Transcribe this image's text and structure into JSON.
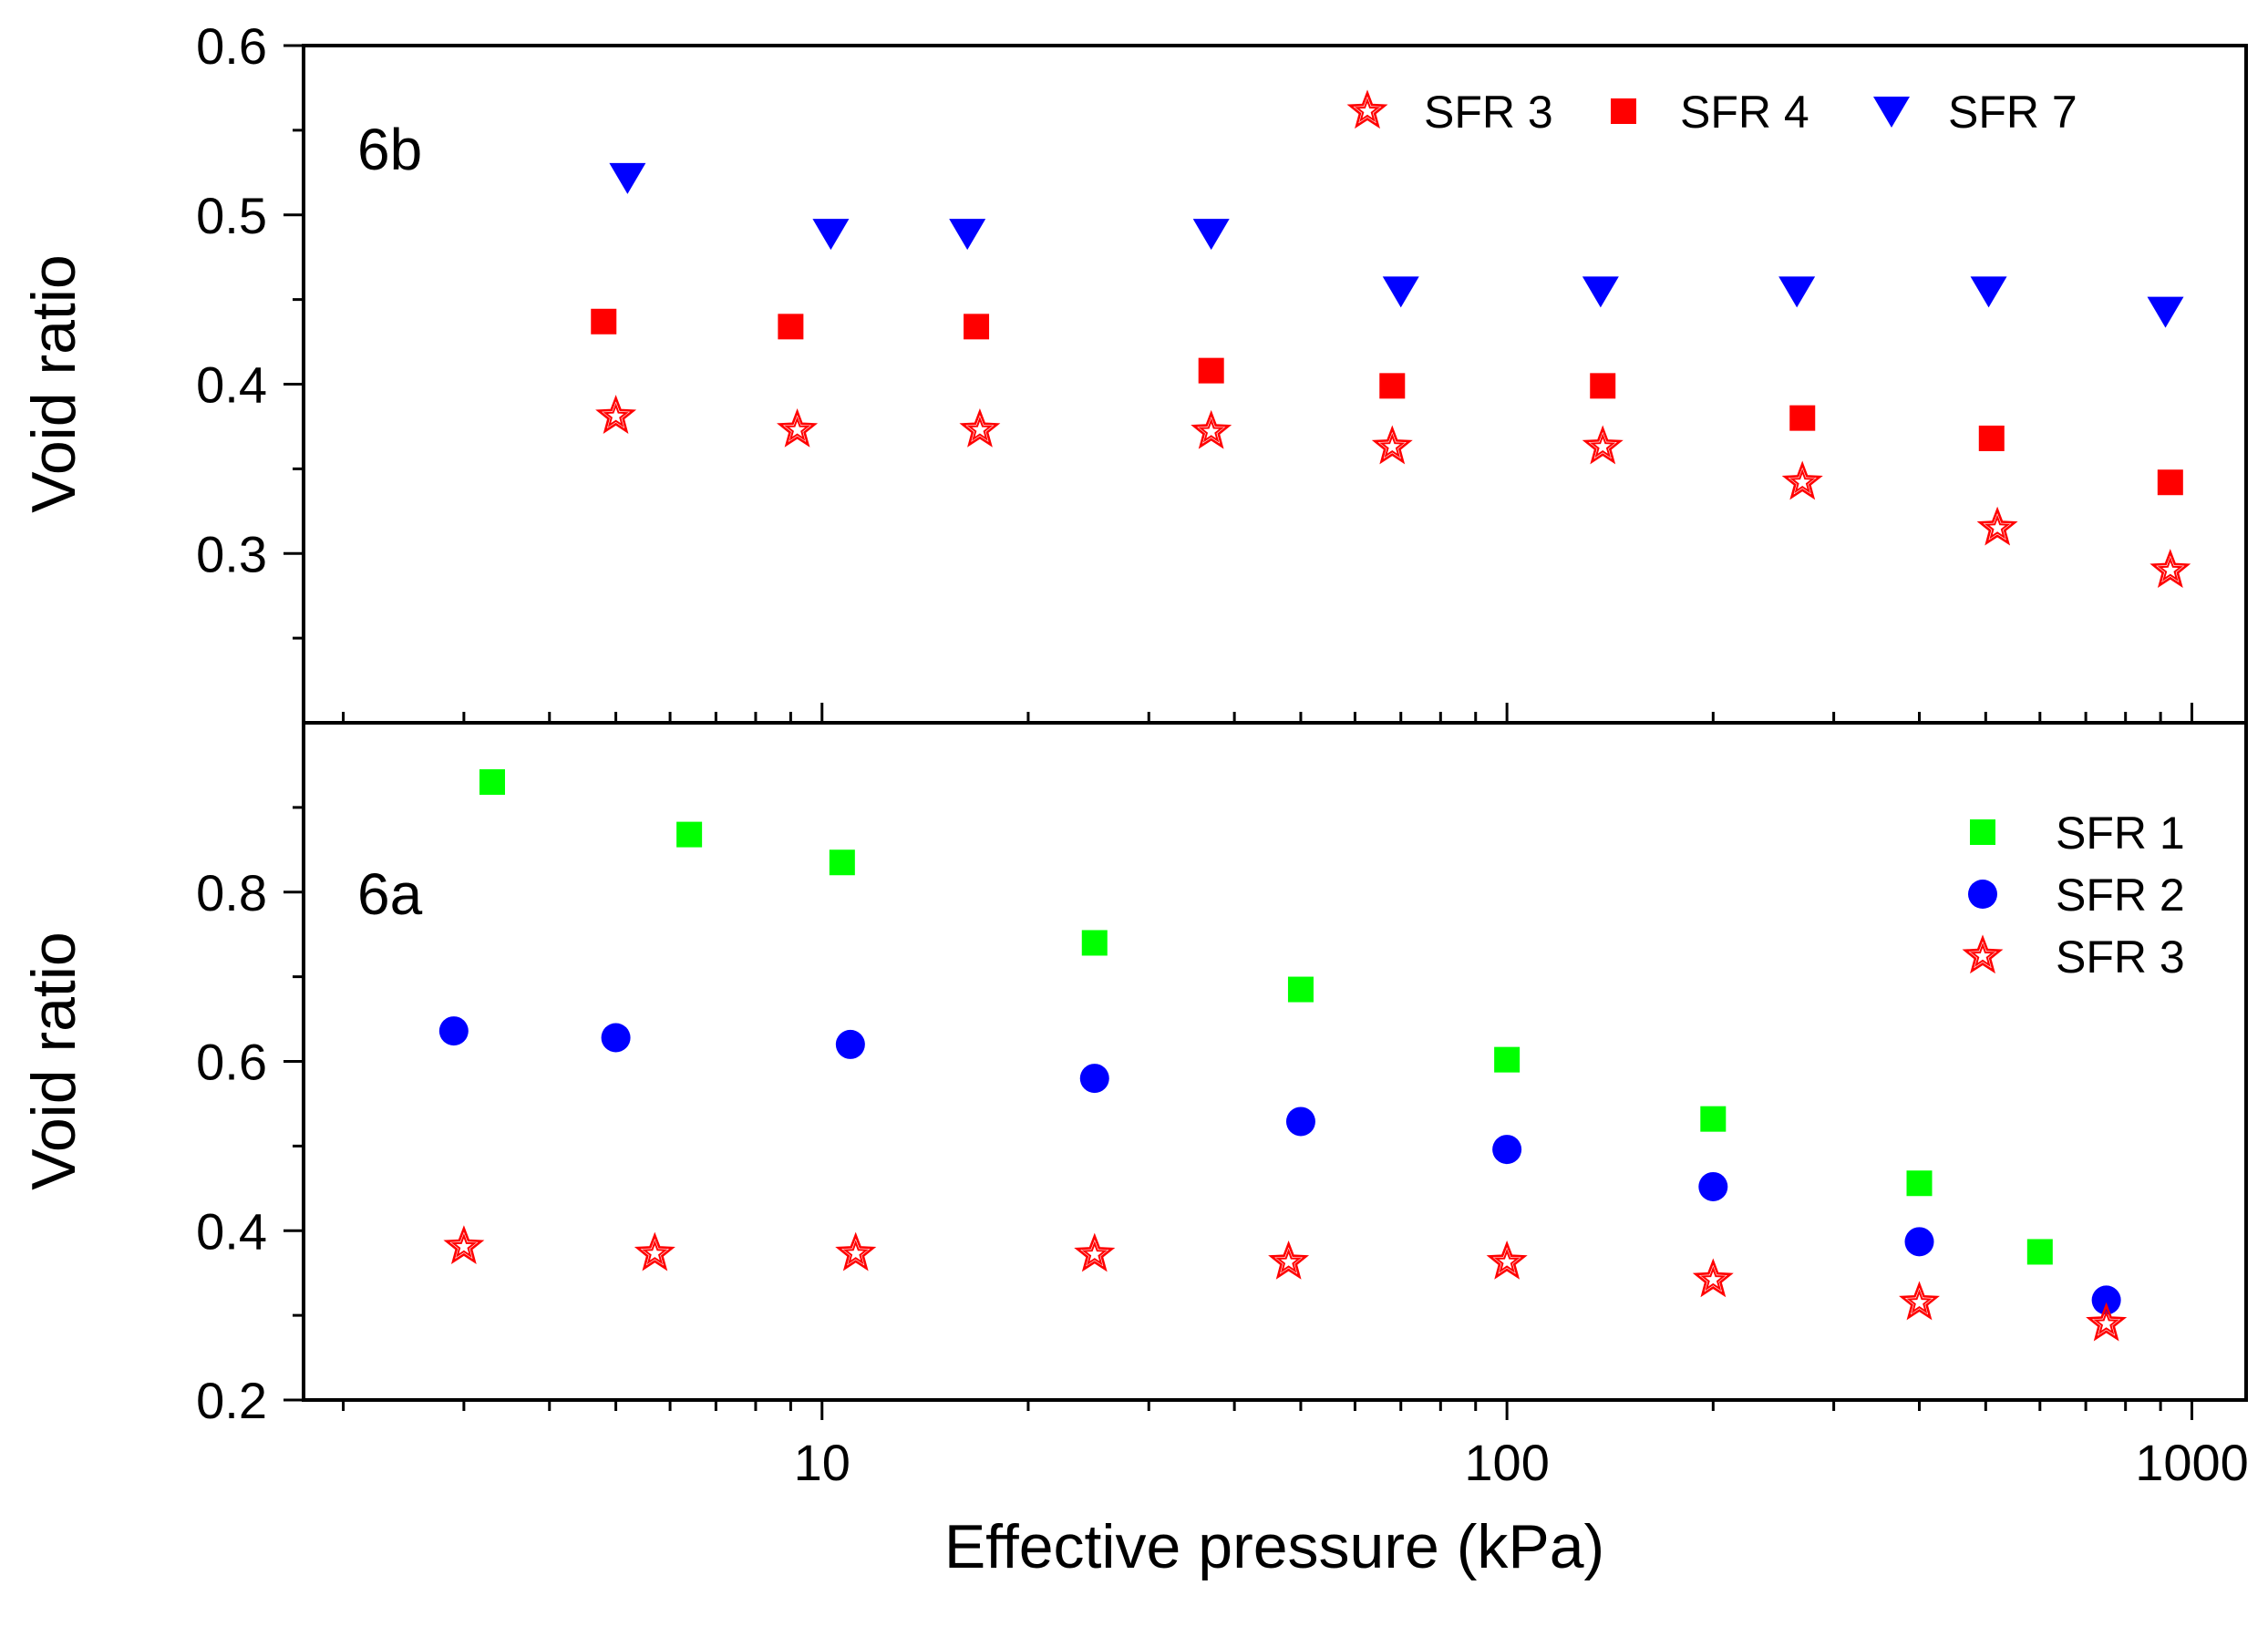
{
  "chart_data": [
    {
      "panel_label": "6b",
      "type": "scatter",
      "x_scale": "log",
      "xlim": [
        1.75,
        1200
      ],
      "ylim": [
        0.2,
        0.6
      ],
      "y_ticks": [
        0.3,
        0.4,
        0.5,
        0.6
      ],
      "y_tick_labels": [
        "0.3",
        "0.4",
        "0.5",
        "0.6"
      ],
      "ylabel": "Void ratio",
      "grid": false,
      "legend_position": "top-right",
      "legend_layout": "horizontal",
      "series": [
        {
          "name": "SFR 3",
          "marker": "star",
          "color": "#ff0000",
          "x": [
            5.0,
            9.2,
            17.0,
            37.0,
            68.0,
            138.0,
            270.0,
            520.0,
            930.0
          ],
          "y": [
            0.381,
            0.373,
            0.373,
            0.372,
            0.363,
            0.363,
            0.342,
            0.315,
            0.29
          ]
        },
        {
          "name": "SFR 4",
          "marker": "square",
          "color": "#ff0000",
          "x": [
            4.8,
            9.0,
            16.8,
            37.0,
            68.0,
            138.0,
            270.0,
            510.0,
            930.0
          ],
          "y": [
            0.437,
            0.434,
            0.434,
            0.408,
            0.399,
            0.399,
            0.38,
            0.368,
            0.342
          ]
        },
        {
          "name": "SFR 7",
          "marker": "triangle-down",
          "color": "#0000ff",
          "x": [
            5.2,
            10.3,
            16.3,
            37.0,
            70.0,
            137.0,
            265.0,
            505.0,
            915.0
          ],
          "y": [
            0.522,
            0.489,
            0.489,
            0.489,
            0.455,
            0.455,
            0.455,
            0.455,
            0.443
          ]
        }
      ]
    },
    {
      "panel_label": "6a",
      "type": "scatter",
      "x_scale": "log",
      "xlim": [
        1.75,
        1200
      ],
      "ylim": [
        0.2,
        1.0
      ],
      "x_ticks": [
        10,
        100,
        1000
      ],
      "x_tick_labels": [
        "10",
        "100",
        "1000"
      ],
      "y_ticks": [
        0.2,
        0.4,
        0.6,
        0.8
      ],
      "y_tick_labels": [
        "0.2",
        "0.4",
        "0.6",
        "0.8"
      ],
      "xlabel": "Effective pressure (kPa)",
      "ylabel": "Void ratio",
      "grid": false,
      "legend_position": "top-right",
      "legend_layout": "vertical",
      "series": [
        {
          "name": "SFR 1",
          "marker": "square",
          "color": "#00ff00",
          "x": [
            3.3,
            6.4,
            10.7,
            25.0,
            50.0,
            100.0,
            200.0,
            400.0,
            600.0
          ],
          "y": [
            0.93,
            0.868,
            0.835,
            0.74,
            0.685,
            0.602,
            0.532,
            0.456,
            0.375
          ]
        },
        {
          "name": "SFR 2",
          "marker": "circle",
          "color": "#0000ff",
          "x": [
            2.9,
            5.0,
            11.0,
            25.0,
            50.0,
            100.0,
            200.0,
            400.0,
            750.0
          ],
          "y": [
            0.636,
            0.628,
            0.62,
            0.58,
            0.529,
            0.496,
            0.452,
            0.387,
            0.318
          ]
        },
        {
          "name": "SFR 3",
          "marker": "star",
          "color": "#ff0000",
          "x": [
            3.0,
            5.7,
            11.2,
            25.0,
            48.0,
            100.0,
            200.0,
            400.0,
            750.0
          ],
          "y": [
            0.381,
            0.373,
            0.373,
            0.372,
            0.363,
            0.363,
            0.342,
            0.315,
            0.29
          ]
        }
      ]
    }
  ]
}
